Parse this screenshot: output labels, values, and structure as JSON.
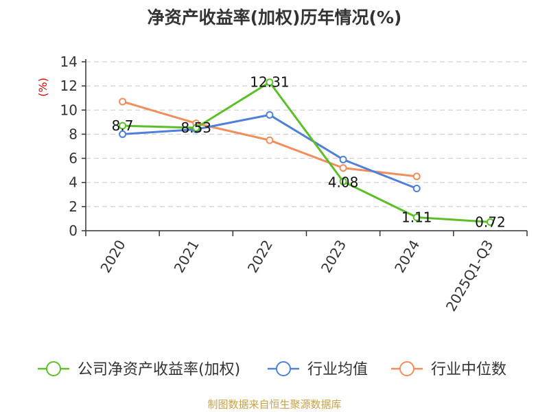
{
  "chart_data": {
    "type": "line",
    "title": "净资产收益率(加权)历年情况(%)",
    "unit_label": "(%)",
    "xlabel": "",
    "ylabel": "(%)",
    "ylim": [
      0,
      14
    ],
    "yticks": [
      0,
      2,
      4,
      6,
      8,
      10,
      12,
      14
    ],
    "grid": true,
    "legend_position": "bottom",
    "categories": [
      "2020",
      "2021",
      "2022",
      "2023",
      "2024",
      "2025Q1-Q3"
    ],
    "series": [
      {
        "name": "公司净资产收益率(加权)",
        "color": "#5cbf2a",
        "values": [
          8.7,
          8.53,
          12.31,
          4.08,
          1.11,
          0.72
        ],
        "labels": [
          "8.7",
          "8.53",
          "12.31",
          "4.08",
          "1.11",
          "0.72"
        ]
      },
      {
        "name": "行业均值",
        "color": "#4f81d8",
        "values": [
          8.0,
          8.4,
          9.6,
          5.9,
          3.5,
          null
        ],
        "labels": []
      },
      {
        "name": "行业中位数",
        "color": "#f28e5b",
        "values": [
          10.7,
          8.9,
          7.5,
          5.2,
          4.5,
          null
        ],
        "labels": []
      }
    ]
  },
  "source": "制图数据来自恒生聚源数据库"
}
